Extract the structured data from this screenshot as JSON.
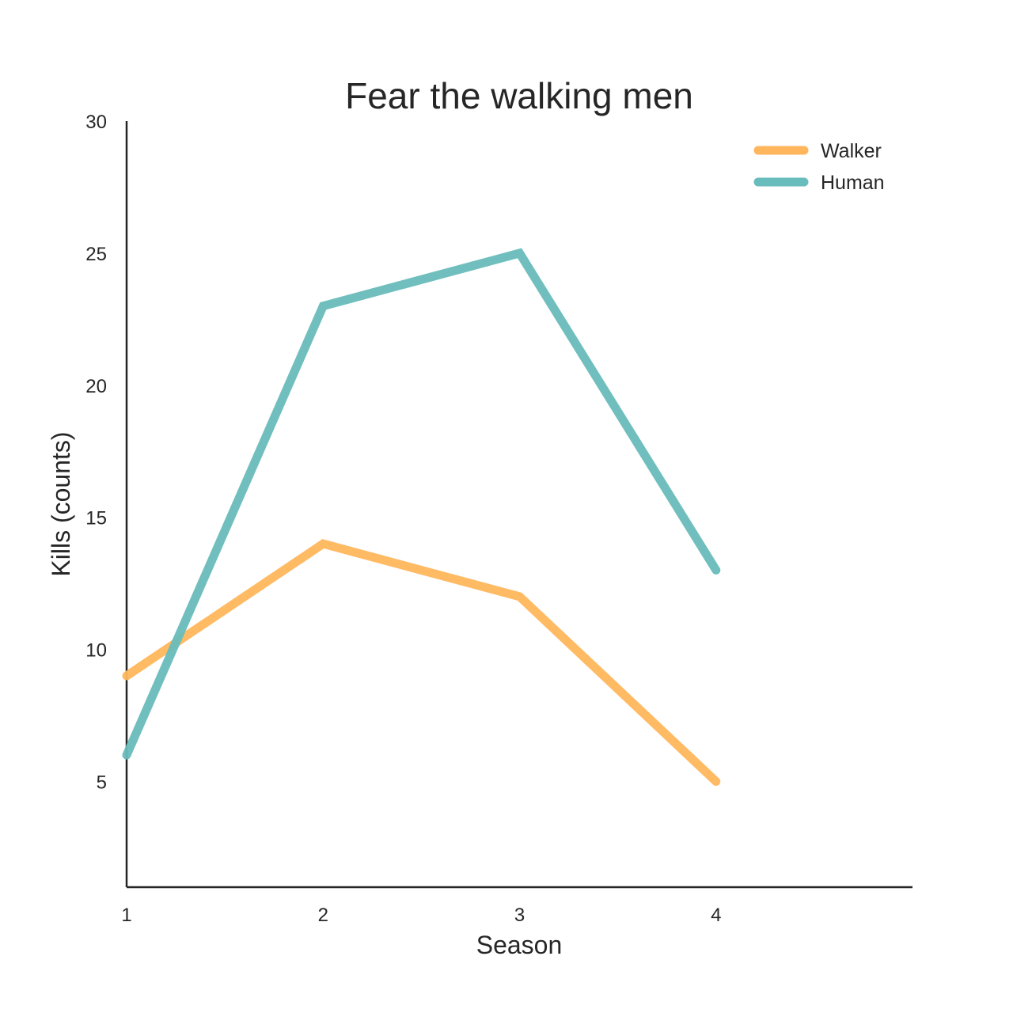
{
  "chart_data": {
    "type": "line",
    "title": "Fear the walking men",
    "xlabel": "Season",
    "ylabel": "Kills (counts)",
    "x": [
      1,
      2,
      3,
      4
    ],
    "xticks": [
      "1",
      "2",
      "3",
      "4"
    ],
    "xlim": [
      1,
      5
    ],
    "yticks": [
      "5",
      "10",
      "15",
      "20",
      "25",
      "30"
    ],
    "ylim": [
      1,
      30
    ],
    "grid": false,
    "legend_position": "top-right",
    "series": [
      {
        "name": "Walker",
        "color": "#ffb65c",
        "values": [
          9,
          14,
          12,
          5
        ]
      },
      {
        "name": "Human",
        "color": "#68bcbb",
        "values": [
          6,
          23,
          25,
          13
        ]
      }
    ]
  }
}
